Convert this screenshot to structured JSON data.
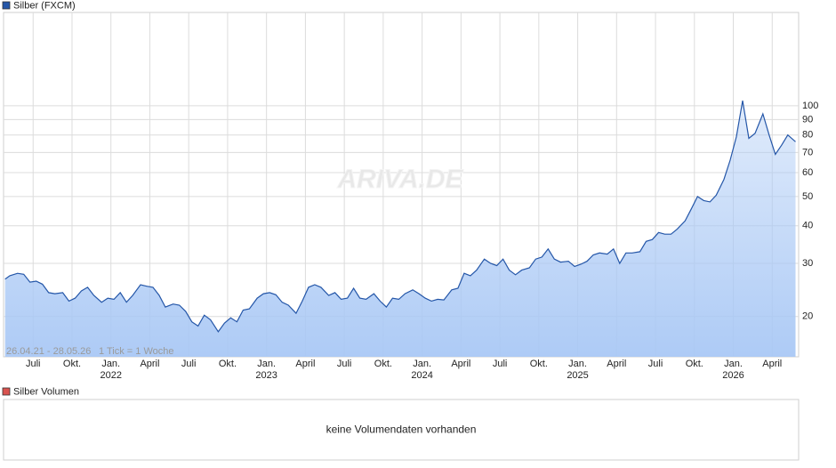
{
  "chart_data": {
    "type": "area",
    "legend": "Silber (FXCM)",
    "annotations": [
      "26.04.21 - 28.05.26",
      "1 Tick = 1 Woche"
    ],
    "watermark": "ARIVA.DE",
    "ylog": true,
    "grid": true,
    "x": [
      2021.32,
      2021.35,
      2021.4,
      2021.44,
      2021.48,
      2021.52,
      2021.56,
      2021.6,
      2021.64,
      2021.69,
      2021.73,
      2021.77,
      2021.81,
      2021.85,
      2021.89,
      2021.94,
      2021.98,
      2022.02,
      2022.06,
      2022.1,
      2022.14,
      2022.19,
      2022.23,
      2022.27,
      2022.31,
      2022.35,
      2022.4,
      2022.44,
      2022.48,
      2022.52,
      2022.56,
      2022.6,
      2022.64,
      2022.69,
      2022.73,
      2022.77,
      2022.81,
      2022.85,
      2022.89,
      2022.94,
      2022.98,
      2023.02,
      2023.06,
      2023.1,
      2023.14,
      2023.19,
      2023.23,
      2023.27,
      2023.31,
      2023.35,
      2023.4,
      2023.44,
      2023.48,
      2023.52,
      2023.56,
      2023.6,
      2023.64,
      2023.69,
      2023.73,
      2023.77,
      2023.81,
      2023.85,
      2023.89,
      2023.94,
      2023.98,
      2024.02,
      2024.06,
      2024.1,
      2024.14,
      2024.19,
      2024.23,
      2024.27,
      2024.31,
      2024.35,
      2024.4,
      2024.44,
      2024.48,
      2024.52,
      2024.56,
      2024.6,
      2024.64,
      2024.69,
      2024.73,
      2024.77,
      2024.81,
      2024.85,
      2024.89,
      2024.94,
      2024.98,
      2025.02,
      2025.06,
      2025.1,
      2025.14,
      2025.19,
      2025.23,
      2025.27,
      2025.31,
      2025.35,
      2025.4,
      2025.44,
      2025.48,
      2025.52,
      2025.56,
      2025.6,
      2025.64,
      2025.69,
      2025.73,
      2025.77,
      2025.81,
      2025.85,
      2025.89,
      2025.94,
      2025.98,
      2026.02,
      2026.06,
      2026.1,
      2026.14,
      2026.19,
      2026.23,
      2026.27,
      2026.31,
      2026.35,
      2026.4
    ],
    "series": [
      {
        "name": "Silber (FXCM)",
        "color": "#2456a8",
        "fill_color": "#a9c8f5",
        "values": [
          26.6,
          27.3,
          27.8,
          27.6,
          26.0,
          26.2,
          25.6,
          24.0,
          23.8,
          24.0,
          22.5,
          23.0,
          24.3,
          25.0,
          23.5,
          22.3,
          23.0,
          22.8,
          24.0,
          22.3,
          23.5,
          25.5,
          25.2,
          25.0,
          23.5,
          21.5,
          22.0,
          21.8,
          20.8,
          19.2,
          18.6,
          20.2,
          19.5,
          17.8,
          19.0,
          19.8,
          19.2,
          21.0,
          21.2,
          23.0,
          23.8,
          24.0,
          23.6,
          22.3,
          21.8,
          20.5,
          22.5,
          25.0,
          25.5,
          25.0,
          23.5,
          24.0,
          22.8,
          23.0,
          24.8,
          23.0,
          22.8,
          23.8,
          22.5,
          21.5,
          23.0,
          22.8,
          23.8,
          24.5,
          23.8,
          23.0,
          22.5,
          22.8,
          22.7,
          24.5,
          24.8,
          27.8,
          27.3,
          28.5,
          31.0,
          30.0,
          29.5,
          31.0,
          28.5,
          27.5,
          28.5,
          29.0,
          31.0,
          31.5,
          33.5,
          31.0,
          30.3,
          30.5,
          29.3,
          29.8,
          30.5,
          32.0,
          32.5,
          32.2,
          33.5,
          30.0,
          32.5,
          32.5,
          32.8,
          35.5,
          36.0,
          38.0,
          37.5,
          37.5,
          39.0,
          41.5,
          45.5,
          50.0,
          48.5,
          48.0,
          50.5,
          57.0,
          66.0,
          79.0,
          104.0,
          78.0,
          81.0,
          94.0,
          80.0,
          69.0,
          74.0,
          80.0,
          76.0
        ]
      }
    ],
    "xlim": [
      2021.31,
      2026.42
    ],
    "xticks": [
      {
        "value": 2021.5,
        "label": "Juli"
      },
      {
        "value": 2021.75,
        "label": "Okt."
      },
      {
        "value": 2022,
        "label": "Jan.\n2022"
      },
      {
        "value": 2022.25,
        "label": "April"
      },
      {
        "value": 2022.5,
        "label": "Juli"
      },
      {
        "value": 2022.75,
        "label": "Okt."
      },
      {
        "value": 2023,
        "label": "Jan.\n2023"
      },
      {
        "value": 2023.25,
        "label": "April"
      },
      {
        "value": 2023.5,
        "label": "Juli"
      },
      {
        "value": 2023.75,
        "label": "Okt."
      },
      {
        "value": 2024,
        "label": "Jan.\n2024"
      },
      {
        "value": 2024.25,
        "label": "April"
      },
      {
        "value": 2024.5,
        "label": "Juli"
      },
      {
        "value": 2024.75,
        "label": "Okt."
      },
      {
        "value": 2025,
        "label": "Jan.\n2025"
      },
      {
        "value": 2025.25,
        "label": "April"
      },
      {
        "value": 2025.5,
        "label": "Juli"
      },
      {
        "value": 2025.75,
        "label": "Okt."
      },
      {
        "value": 2026,
        "label": "Jan.\n2026"
      },
      {
        "value": 2026.25,
        "label": "April"
      }
    ],
    "ylim": [
      14.7,
      204
    ],
    "yticks": [
      20,
      30,
      40,
      50,
      60,
      70,
      80,
      90,
      100
    ]
  },
  "volume_panel": {
    "legend": "Silber Volumen",
    "color": "#d9534f",
    "message": "keine Volumendaten vorhanden"
  }
}
